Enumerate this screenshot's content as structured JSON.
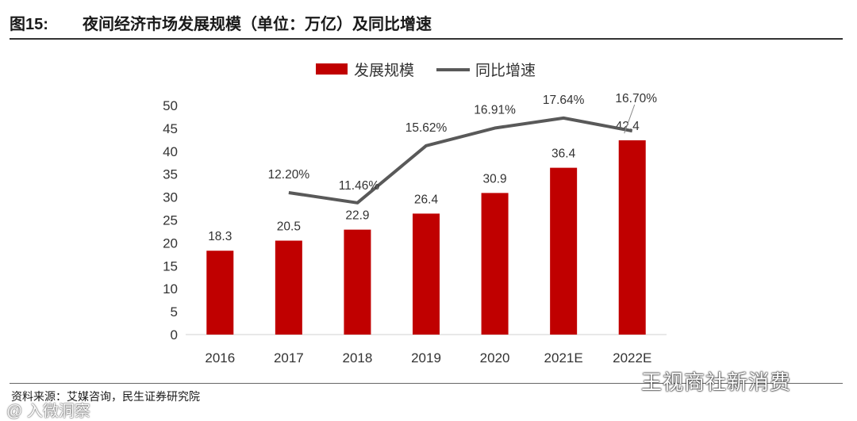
{
  "figure": {
    "number": "图15:",
    "title": "夜间经济市场发展规模（单位：万亿）及同比增速",
    "source": "资料来源：艾媒咨询，民生证券研究院"
  },
  "watermarks": {
    "right": "王视商社新消费",
    "left": "@ 入微洞察"
  },
  "colors": {
    "bar": "#c00000",
    "line": "#595959"
  },
  "chart_data": {
    "type": "bar",
    "title": "夜间经济市场发展规模（单位：万亿）及同比增速",
    "categories": [
      "2016",
      "2017",
      "2018",
      "2019",
      "2020",
      "2021E",
      "2022E"
    ],
    "series": [
      {
        "name": "发展规模",
        "type": "bar",
        "values": [
          18.3,
          20.5,
          22.9,
          26.4,
          30.9,
          36.4,
          42.4
        ],
        "labels": [
          "18.3",
          "20.5",
          "22.9",
          "26.4",
          "30.9",
          "36.4",
          "42.4"
        ]
      },
      {
        "name": "同比增速",
        "type": "line",
        "values": [
          null,
          12.2,
          11.46,
          15.62,
          16.91,
          17.64,
          16.7
        ],
        "labels": [
          "",
          "12.20%",
          "11.46%",
          "15.62%",
          "16.91%",
          "17.64%",
          "16.70%"
        ]
      }
    ],
    "ylim": [
      0,
      50
    ],
    "yticks": [
      "0",
      "5",
      "10",
      "15",
      "20",
      "25",
      "30",
      "35",
      "40",
      "45",
      "50"
    ],
    "legend_position": "top-center"
  }
}
